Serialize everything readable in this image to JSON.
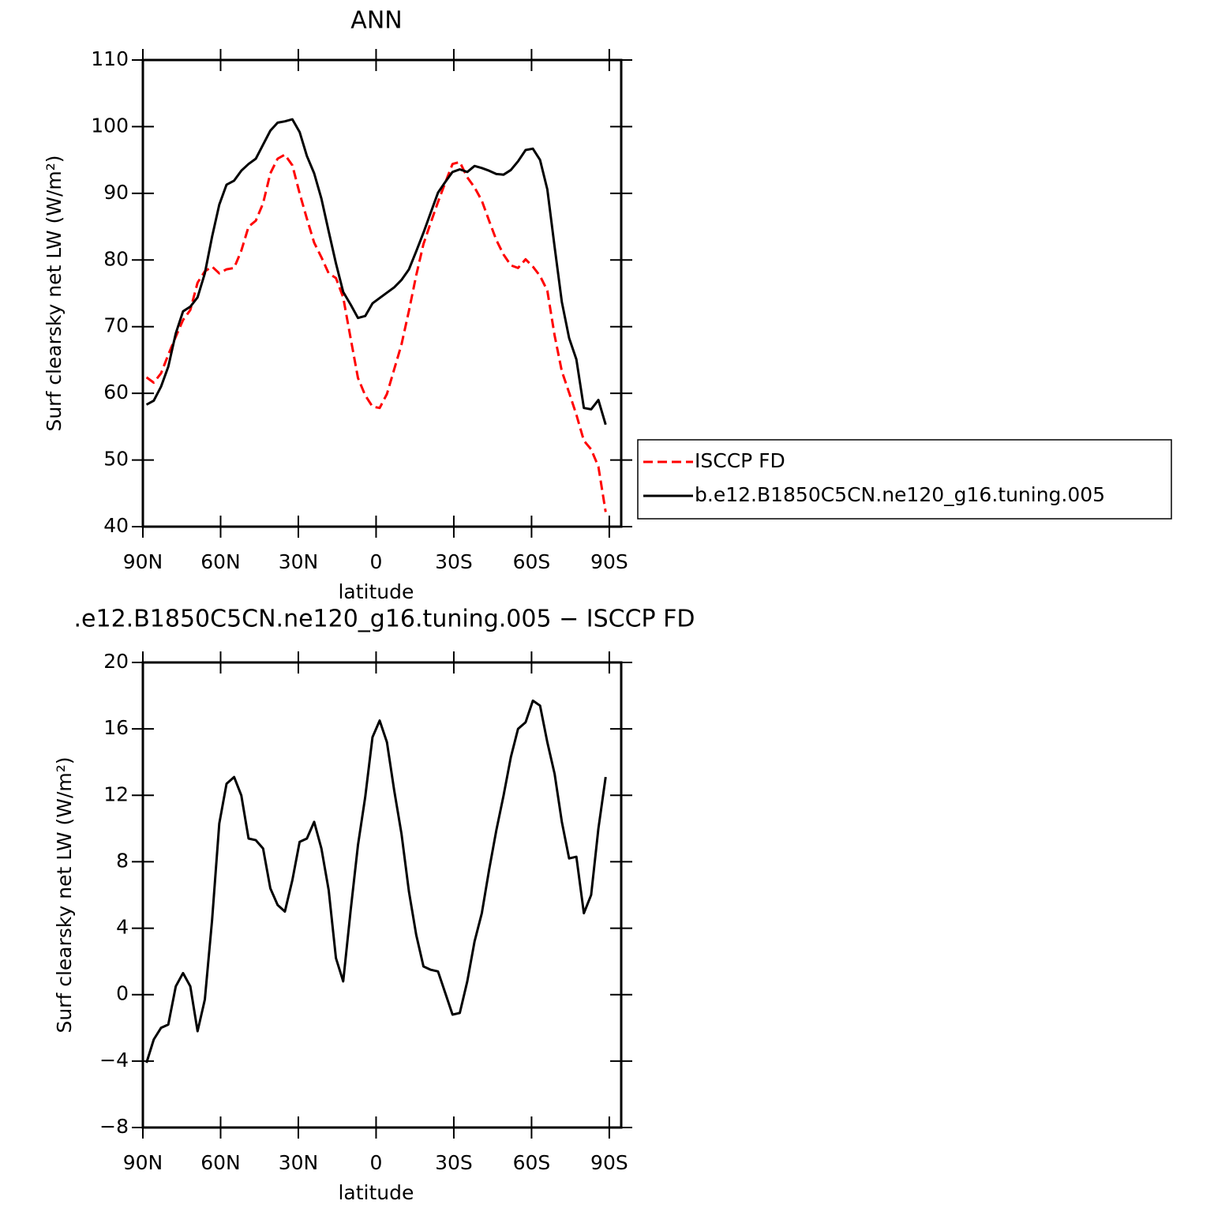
{
  "chart_data": [
    {
      "type": "line",
      "title": "ANN",
      "xlabel": "latitude",
      "ylabel": "Surf clearsky net LW (W/m²)",
      "x": [
        88.6,
        85.8,
        83.0,
        80.2,
        77.3,
        74.5,
        71.7,
        68.9,
        66.1,
        63.3,
        60.5,
        57.7,
        54.8,
        52.0,
        49.2,
        46.4,
        43.6,
        40.8,
        38.0,
        35.2,
        32.3,
        29.5,
        26.7,
        23.9,
        21.1,
        18.3,
        15.5,
        12.7,
        9.8,
        7.0,
        4.2,
        1.4,
        -1.4,
        -4.2,
        -7.0,
        -9.8,
        -12.7,
        -15.5,
        -18.3,
        -21.1,
        -23.9,
        -26.7,
        -29.5,
        -32.3,
        -35.2,
        -38.0,
        -40.8,
        -43.6,
        -46.4,
        -49.2,
        -52.0,
        -54.8,
        -57.7,
        -60.5,
        -63.3,
        -66.1,
        -68.9,
        -71.7,
        -74.5,
        -77.3,
        -80.2,
        -83.0,
        -85.8,
        -88.6
      ],
      "series": [
        {
          "name": "ISCCP FD",
          "color": "#ff0000",
          "style": "dashed",
          "values": [
            62.4,
            61.6,
            63,
            65.8,
            68.5,
            71,
            72.5,
            76.6,
            78.3,
            79,
            78,
            78.6,
            78.8,
            81.4,
            85,
            85.9,
            88.5,
            93,
            95.2,
            95.8,
            94.2,
            90,
            86.2,
            82.6,
            80.4,
            78,
            77.3,
            74.4,
            68.2,
            62.3,
            59.7,
            58,
            57.8,
            59.9,
            63.6,
            67.3,
            72.4,
            77.7,
            82.4,
            85.6,
            88.7,
            91.6,
            94.4,
            94.7,
            92.4,
            90.9,
            88.9,
            85.9,
            83,
            80.8,
            79.2,
            78.8,
            80.1,
            79,
            77.6,
            75.4,
            68.7,
            63.3,
            60.1,
            56.8,
            52.9,
            51.6,
            49,
            42.2
          ]
        },
        {
          "name": "b.e12.B1850C5CN.ne120_g16.tuning.005",
          "color": "#000000",
          "style": "solid",
          "values": [
            58.3,
            58.9,
            61,
            64,
            69,
            72.3,
            73,
            74.4,
            78,
            83.5,
            88.3,
            91.3,
            91.9,
            93.4,
            94.4,
            95.2,
            97.3,
            99.4,
            100.6,
            100.8,
            101.1,
            99.2,
            95.6,
            93,
            89.2,
            84.3,
            79.5,
            75.2,
            73.3,
            71.3,
            71.6,
            73.5,
            74.3,
            75.1,
            75.9,
            77,
            78.6,
            81.3,
            84.1,
            87.1,
            90.1,
            91.7,
            93.2,
            93.6,
            93.2,
            94.1,
            93.8,
            93.4,
            92.9,
            92.8,
            93.5,
            94.8,
            96.5,
            96.7,
            95,
            90.6,
            82,
            73.7,
            68.3,
            65.1,
            57.8,
            57.6,
            59,
            55.3
          ]
        }
      ],
      "xlim": [
        90,
        -94.6
      ],
      "ylim": [
        40,
        110
      ],
      "xticks": [
        {
          "value": 90,
          "label": "90N"
        },
        {
          "value": 60,
          "label": "60N"
        },
        {
          "value": 30,
          "label": "30N"
        },
        0,
        {
          "value": -30,
          "label": "30S"
        },
        {
          "value": -60,
          "label": "60S"
        },
        {
          "value": -90,
          "label": "90S"
        }
      ],
      "yticks": [
        40,
        50,
        60,
        70,
        80,
        90,
        100,
        110
      ],
      "legend": "outside-right"
    },
    {
      "type": "line",
      "title": ".e12.B1850C5CN.ne120_g16.tuning.005 − ISCCP FD",
      "xlabel": "latitude",
      "ylabel": "Surf clearsky net LW (W/m²)",
      "x": [
        88.6,
        85.8,
        83.0,
        80.2,
        77.3,
        74.5,
        71.7,
        68.9,
        66.1,
        63.3,
        60.5,
        57.7,
        54.8,
        52.0,
        49.2,
        46.4,
        43.6,
        40.8,
        38.0,
        35.2,
        32.3,
        29.5,
        26.7,
        23.9,
        21.1,
        18.3,
        15.5,
        12.7,
        9.8,
        7.0,
        4.2,
        1.4,
        -1.4,
        -4.2,
        -7.0,
        -9.8,
        -12.7,
        -15.5,
        -18.3,
        -21.1,
        -23.9,
        -26.7,
        -29.5,
        -32.3,
        -35.2,
        -38.0,
        -40.8,
        -43.6,
        -46.4,
        -49.2,
        -52.0,
        -54.8,
        -57.7,
        -60.5,
        -63.3,
        -66.1,
        -68.9,
        -71.7,
        -74.5,
        -77.3,
        -80.2,
        -83.0,
        -85.8,
        -88.6
      ],
      "series": [
        {
          "color": "#000000",
          "style": "solid",
          "values": [
            -4.1,
            -2.7,
            -2.0,
            -1.8,
            0.5,
            1.3,
            0.5,
            -2.2,
            -0.3,
            4.5,
            10.3,
            12.7,
            13.1,
            12.0,
            9.4,
            9.3,
            8.8,
            6.4,
            5.4,
            5.0,
            6.9,
            9.2,
            9.4,
            10.4,
            8.8,
            6.3,
            2.2,
            0.8,
            5.1,
            9.0,
            11.9,
            15.5,
            16.5,
            15.2,
            12.3,
            9.7,
            6.2,
            3.6,
            1.7,
            1.5,
            1.4,
            0.1,
            -1.2,
            -1.1,
            0.8,
            3.2,
            4.9,
            7.5,
            9.9,
            12.0,
            14.3,
            16.0,
            16.4,
            17.7,
            17.4,
            15.2,
            13.3,
            10.4,
            8.2,
            8.3,
            4.9,
            6.0,
            10.0,
            13.1
          ]
        }
      ],
      "xlim": [
        90,
        -94.6
      ],
      "ylim": [
        -8,
        20
      ],
      "xticks": [
        {
          "value": 90,
          "label": "90N"
        },
        {
          "value": 60,
          "label": "60N"
        },
        {
          "value": 30,
          "label": "30N"
        },
        0,
        {
          "value": -30,
          "label": "30S"
        },
        {
          "value": -60,
          "label": "60S"
        },
        {
          "value": -90,
          "label": "90S"
        }
      ],
      "yticks": [
        {
          "value": -8,
          "label": "−8"
        },
        {
          "value": -4,
          "label": "−4"
        },
        0,
        4,
        8,
        12,
        16,
        20
      ]
    }
  ]
}
